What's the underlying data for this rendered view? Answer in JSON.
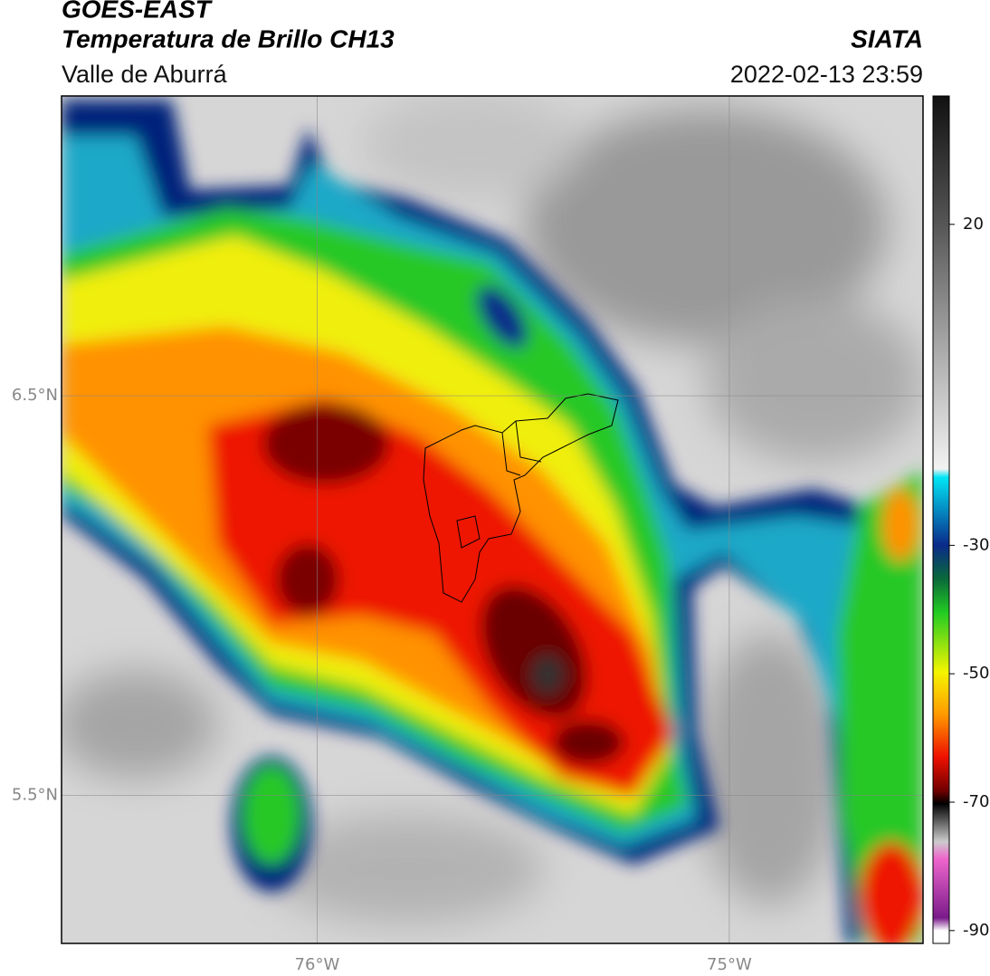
{
  "header": {
    "satellite": "GOES-EAST",
    "product": "Temperatura de Brillo CH13",
    "region": "Valle de Aburrá",
    "source": "SIATA",
    "datetime": "2022-02-13 23:59"
  },
  "map": {
    "lat_lim": [
      5.13,
      7.25
    ],
    "lon_lim": [
      -76.62,
      -74.53
    ],
    "lat_ticks": [
      {
        "value": 6.5,
        "label": "6.5°N"
      },
      {
        "value": 5.5,
        "label": "5.5°N"
      }
    ],
    "lon_ticks": [
      {
        "value": -76,
        "label": "76°W"
      },
      {
        "value": -75,
        "label": "75°W"
      }
    ]
  },
  "colorbar": {
    "lim": [
      -92,
      40
    ],
    "ticks": [
      20,
      -30,
      -50,
      -70,
      -90
    ]
  }
}
